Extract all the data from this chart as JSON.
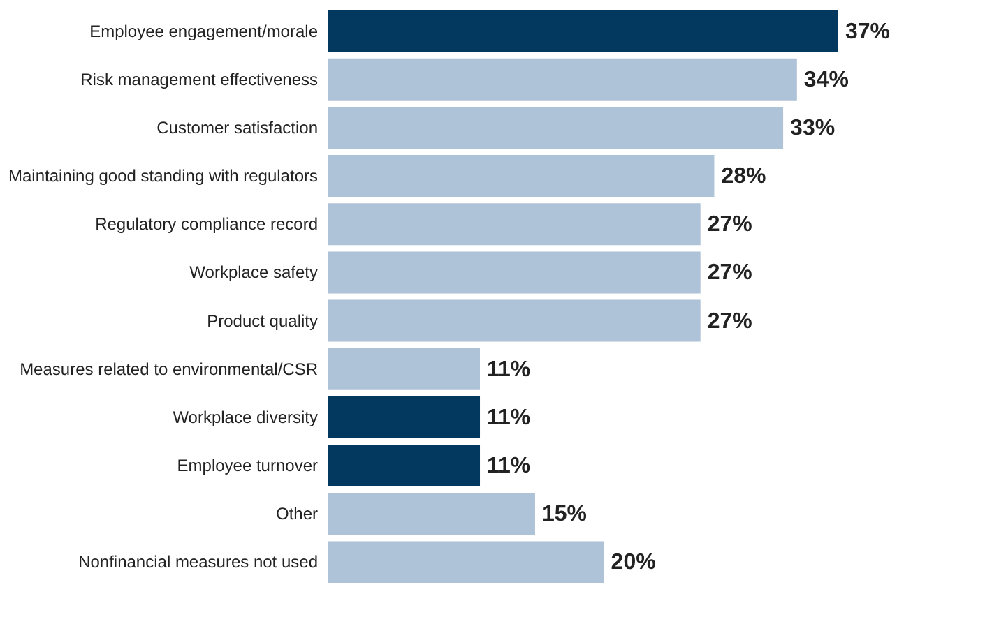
{
  "chart_data": {
    "type": "bar",
    "orientation": "horizontal",
    "categories": [
      "Employee engagement/morale",
      "Risk management effectiveness",
      "Customer satisfaction",
      "Maintaining good standing with regulators",
      "Regulatory compliance record",
      "Workplace safety",
      "Product quality",
      "Measures related to environmental/CSR",
      "Workplace diversity",
      "Employee turnover",
      "Other",
      "Nonfinancial measures not used"
    ],
    "values": [
      37,
      34,
      33,
      28,
      27,
      27,
      27,
      11,
      11,
      11,
      15,
      20
    ],
    "colors": [
      "#04395f",
      "#aec2d8",
      "#aec2d8",
      "#aec2d8",
      "#aec2d8",
      "#aec2d8",
      "#aec2d8",
      "#aec2d8",
      "#04395f",
      "#04395f",
      "#aec2d8",
      "#aec2d8"
    ],
    "value_labels": [
      "37%",
      "34%",
      "33%",
      "28%",
      "27%",
      "27%",
      "27%",
      "11%",
      "11%",
      "11%",
      "15%",
      "20%"
    ]
  }
}
